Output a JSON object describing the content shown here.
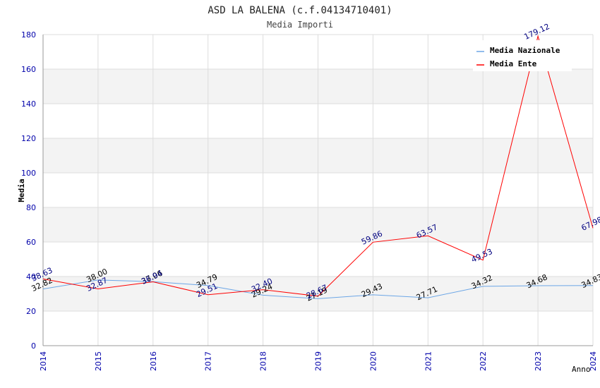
{
  "chart_data": {
    "type": "line",
    "title": "ASD LA BALENA (c.f.04134710401)",
    "subtitle": "Media Importi",
    "xlabel": "Anno",
    "ylabel": "Media",
    "x": [
      "2014",
      "2015",
      "2016",
      "2017",
      "2018",
      "2019",
      "2020",
      "2021",
      "2022",
      "2023",
      "2024"
    ],
    "ylim": [
      0,
      180
    ],
    "yticks": [
      "0",
      "20",
      "40",
      "60",
      "80",
      "100",
      "120",
      "140",
      "160",
      "180"
    ],
    "grid": true,
    "legend_position": "top-right",
    "series": [
      {
        "name": "Media Nazionale",
        "color": "#6ca6e6",
        "label_color": "#000000",
        "values": [
          32.82,
          38.0,
          37.06,
          34.79,
          29.24,
          27.19,
          29.43,
          27.71,
          34.32,
          34.68,
          34.83
        ],
        "labels": [
          "32.82",
          "38.00",
          "37.06",
          "34.79",
          "29.24",
          "27.19",
          "29.43",
          "27.71",
          "34.32",
          "34.68",
          "34.83"
        ]
      },
      {
        "name": "Media Ente",
        "color": "#ff0000",
        "label_color": "#000080",
        "values": [
          38.63,
          32.87,
          36.94,
          29.51,
          32.4,
          28.67,
          59.86,
          63.57,
          49.53,
          179.12,
          67.98
        ],
        "labels": [
          "38.63",
          "32.87",
          "36.94",
          "29.51",
          "32.40",
          "28.67",
          "59.86",
          "63.57",
          "49.53",
          "179.12",
          "67.98"
        ]
      }
    ]
  }
}
